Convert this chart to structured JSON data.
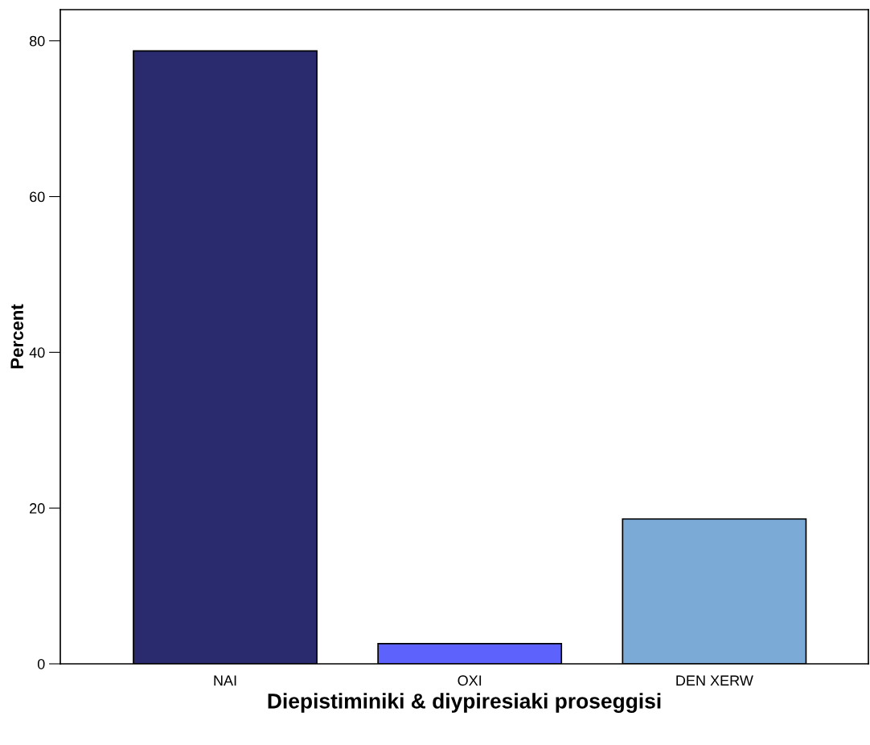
{
  "chart_data": {
    "type": "bar",
    "xlabel": "Diepistiminiki & diypiresiaki proseggisi",
    "ylabel": "Percent",
    "categories": [
      "NAI",
      "OXI",
      "DEN XERW"
    ],
    "values": [
      78.7,
      2.6,
      18.6
    ],
    "colors": [
      "#2a2b6f",
      "#5e62fc",
      "#7baad6"
    ],
    "ylim": [
      0,
      84
    ],
    "yticks": [
      0,
      20,
      40,
      60,
      80
    ],
    "grid": false,
    "legend": false
  }
}
